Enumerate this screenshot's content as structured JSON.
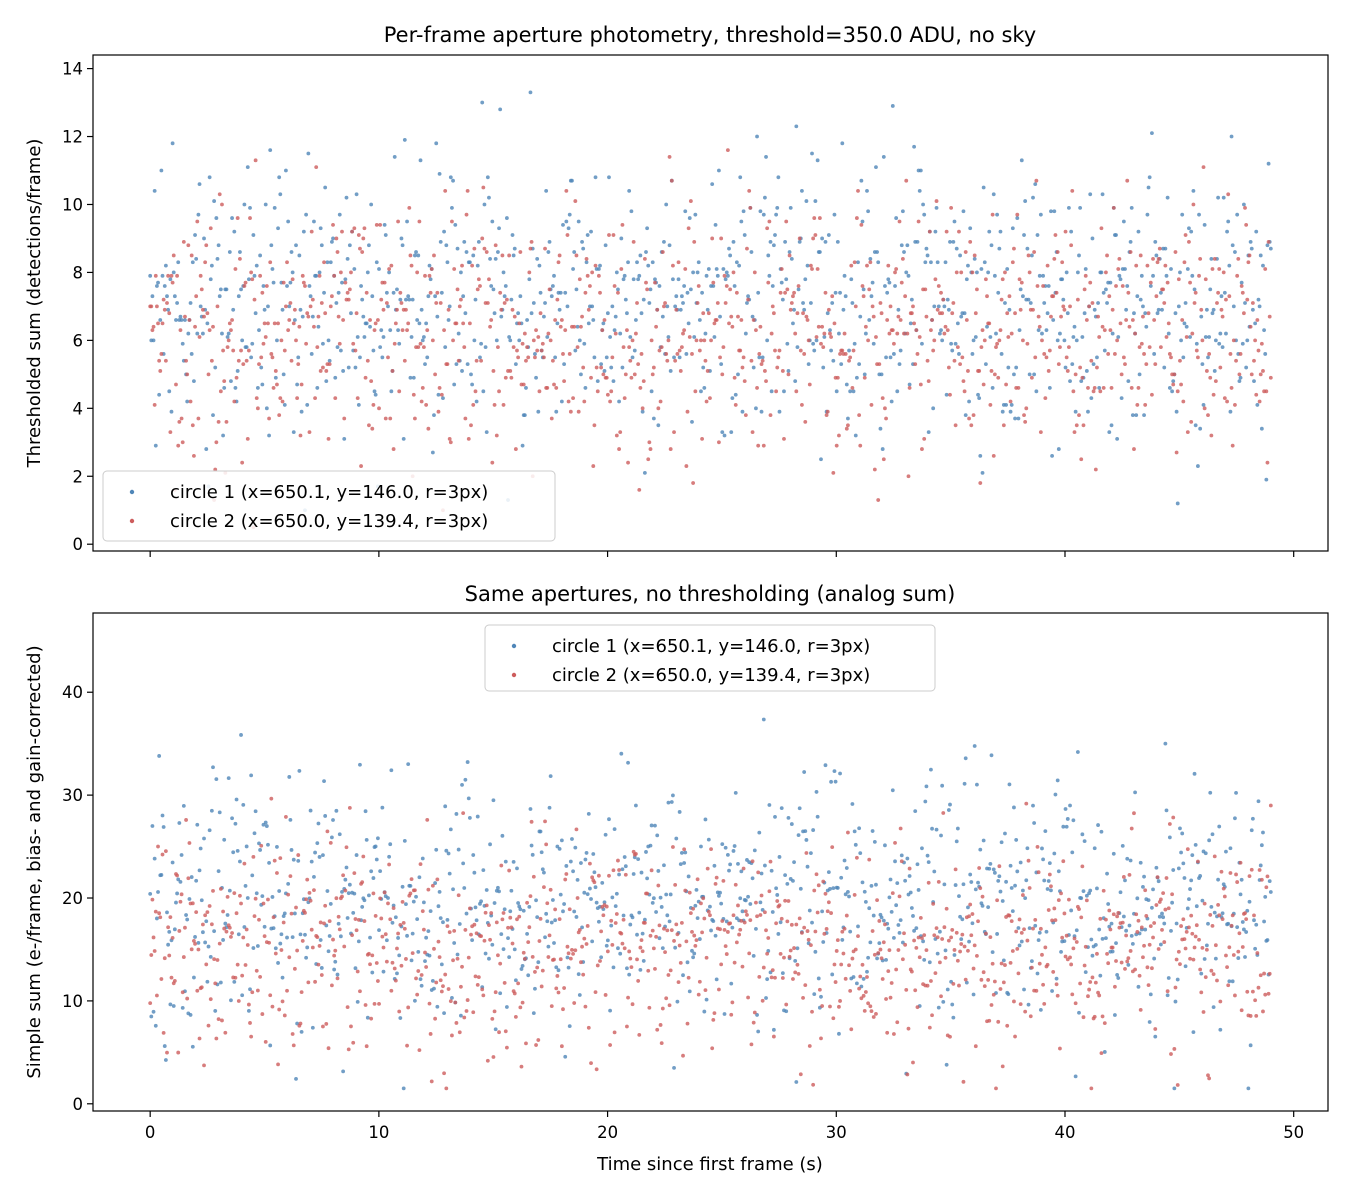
{
  "chart_data": [
    {
      "type": "scatter",
      "title": "Per-frame aperture photometry, threshold=350.0 ADU, no sky",
      "xlabel": "",
      "ylabel": "Thresholded sum (detections/frame)",
      "xlim": [
        -2.5,
        51.5
      ],
      "ylim": [
        -0.2,
        14.4
      ],
      "xticks": [
        0,
        10,
        20,
        30,
        40,
        50
      ],
      "xtick_labels_visible": false,
      "yticks": [
        0,
        2,
        4,
        6,
        8,
        10,
        12,
        14
      ],
      "legend_loc": "lower-left",
      "grid": false,
      "sampling": {
        "t_start": 0.0,
        "t_end": 49.0,
        "frames": 1000
      },
      "series": [
        {
          "name": "circle 1  (x=650.1, y=146.0, r=3px)",
          "color": "#4f86b8",
          "summary": {
            "mean": 7.2,
            "std": 2.0,
            "min": 1.0,
            "max": 13.7,
            "step": 0.1
          }
        },
        {
          "name": "circle 2  (x=650.0, y=139.4, r=3px)",
          "color": "#cd5c5c",
          "summary": {
            "mean": 6.2,
            "std": 1.9,
            "min": 0.5,
            "max": 12.3,
            "step": 0.1
          }
        }
      ]
    },
    {
      "type": "scatter",
      "title": "Same apertures, no thresholding (analog sum)",
      "xlabel": "Time since first frame (s)",
      "ylabel": "Simple sum (e-/frame, bias- and gain-corrected)",
      "xlim": [
        -2.5,
        51.5
      ],
      "ylim": [
        -0.7,
        47.7
      ],
      "xticks": [
        0,
        10,
        20,
        30,
        40,
        50
      ],
      "xtick_labels_visible": true,
      "yticks": [
        0,
        10,
        20,
        30,
        40
      ],
      "legend_loc": "upper-center",
      "grid": false,
      "sampling": {
        "t_start": 0.0,
        "t_end": 49.0,
        "frames": 1000
      },
      "series": [
        {
          "name": "circle 1  (x=650.1, y=146.0, r=3px)",
          "color": "#4f86b8",
          "summary": {
            "mean": 19.5,
            "std": 6.0,
            "min": 1.5,
            "max": 45.5
          }
        },
        {
          "name": "circle 2  (x=650.0, y=139.4, r=3px)",
          "color": "#cd5c5c",
          "summary": {
            "mean": 15.5,
            "std": 5.3,
            "min": 1.5,
            "max": 40.6
          }
        }
      ]
    }
  ]
}
